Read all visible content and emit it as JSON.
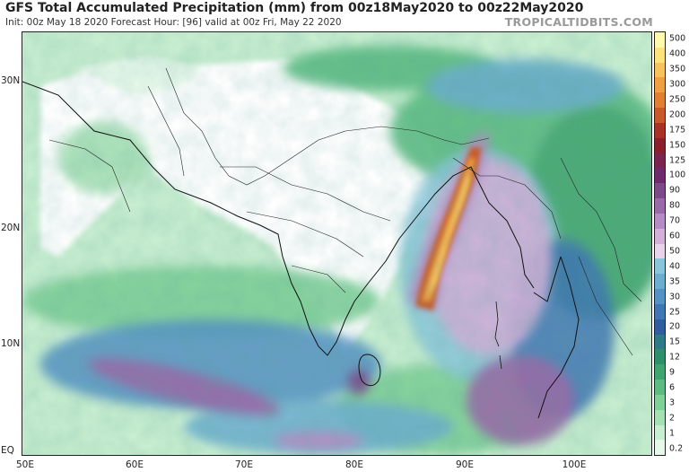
{
  "header": {
    "title": "GFS Total Accumulated Precipitation (mm) from 00z18May2020 to 00z22May2020",
    "subtitle": "Init: 00z May 18 2020   Forecast Hour: [96]   valid at 00z Fri, May 22 2020",
    "source": "TROPICALTIDBITS.COM"
  },
  "axes": {
    "lat_labels": [
      "30N",
      "20N",
      "10N",
      "EQ"
    ],
    "lon_labels": [
      "50E",
      "60E",
      "70E",
      "80E",
      "90E",
      "100E"
    ]
  },
  "colorbar": {
    "labels": [
      "500",
      "400",
      "350",
      "300",
      "250",
      "200",
      "175",
      "150",
      "125",
      "100",
      "90",
      "80",
      "70",
      "60",
      "50",
      "40",
      "35",
      "30",
      "25",
      "20",
      "15",
      "12",
      "9",
      "6",
      "3",
      "2",
      "1",
      "0.2"
    ],
    "colors": [
      "#fff9b0",
      "#fde37a",
      "#f8c25c",
      "#f0a040",
      "#e07f30",
      "#c85a28",
      "#a83226",
      "#8c1f2e",
      "#7a2450",
      "#6e2a6a",
      "#7d4a88",
      "#9a6aa8",
      "#b78cc4",
      "#d2b0d8",
      "#e8d3ea",
      "#8ac6d9",
      "#6daed0",
      "#5592c4",
      "#3f76b4",
      "#2f5d9e",
      "#2e7a86",
      "#2f8f6c",
      "#3fa46e",
      "#5cbb82",
      "#7fcf98",
      "#a5dfb4",
      "#c8eed0",
      "#e6f8ea"
    ]
  },
  "map": {
    "region": "South Asia / Bay of Bengal",
    "features": [
      "coastlines",
      "country borders",
      "state borders"
    ],
    "max_precip_region": "Bay of Bengal cyclone track"
  }
}
